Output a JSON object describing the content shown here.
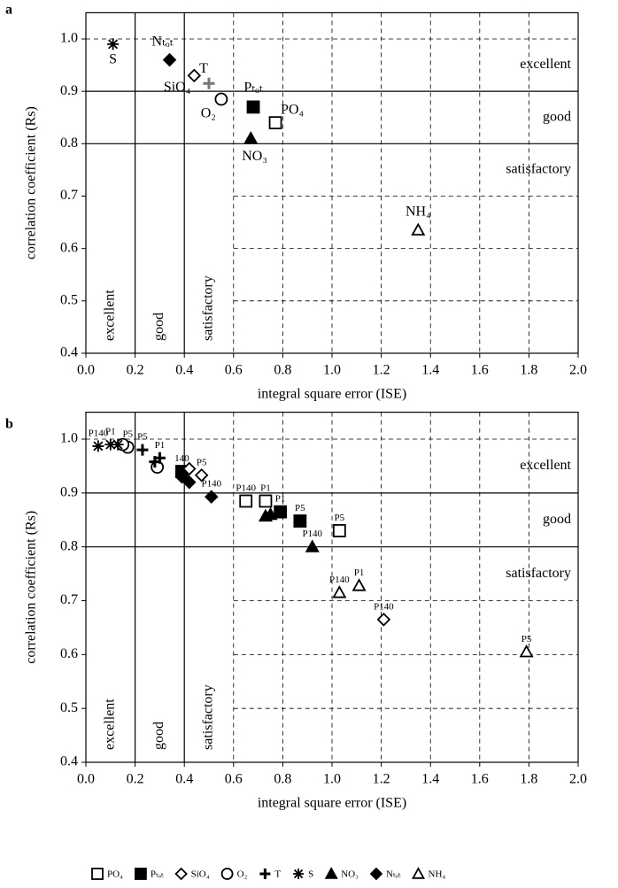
{
  "chart_data": [
    {
      "type": "scatter",
      "title": "a",
      "xlabel": "integral square error (ISE)",
      "ylabel": "correlation coefficient (Rs)",
      "xlim": [
        0,
        2
      ],
      "ylim": [
        0.4,
        1.05
      ],
      "xticks": [
        {
          "value": 0,
          "label": "0.0"
        },
        0.2,
        0.4,
        0.6,
        0.8,
        {
          "value": 1,
          "label": "1.0"
        },
        1.2,
        1.4,
        1.6,
        1.8,
        {
          "value": 2,
          "label": "2.0"
        }
      ],
      "yticks": [
        0.4,
        0.5,
        0.6,
        0.7,
        0.8,
        0.9,
        {
          "value": 1,
          "label": "1.0"
        }
      ],
      "grid": {
        "solid_x": [
          0.2,
          0.4
        ],
        "solid_y": [
          0.8,
          0.9
        ]
      },
      "zone_labels": [
        "excellent",
        "good",
        "satisfactory"
      ],
      "series": [
        {
          "name": "PO₄",
          "shape": "square",
          "filled": false,
          "color": "#000000",
          "x": [
            0.77
          ],
          "values": [
            0.84
          ]
        },
        {
          "name": "Pₜₒₜ",
          "shape": "square",
          "filled": true,
          "color": "#000000",
          "x": [
            0.68
          ],
          "values": [
            0.87
          ]
        },
        {
          "name": "SiO₄",
          "shape": "diamond",
          "filled": false,
          "color": "#000000",
          "x": [
            0.44
          ],
          "values": [
            0.93
          ]
        },
        {
          "name": "O₂",
          "shape": "circle",
          "filled": false,
          "color": "#000000",
          "x": [
            0.55
          ],
          "values": [
            0.885
          ]
        },
        {
          "name": "T",
          "shape": "plus",
          "filled": true,
          "color": "#777777",
          "x": [
            0.5
          ],
          "values": [
            0.915
          ]
        },
        {
          "name": "S",
          "shape": "asterisk",
          "filled": true,
          "color": "#000000",
          "x": [
            0.11
          ],
          "values": [
            0.99
          ]
        },
        {
          "name": "NO₃",
          "shape": "triangle",
          "filled": true,
          "color": "#000000",
          "x": [
            0.67
          ],
          "values": [
            0.81
          ]
        },
        {
          "name": "Nₜₒₜ",
          "shape": "diamond",
          "filled": true,
          "color": "#000000",
          "x": [
            0.34
          ],
          "values": [
            0.96
          ]
        },
        {
          "name": "NH₄",
          "shape": "triangle",
          "filled": false,
          "color": "#000000",
          "x": [
            1.35
          ],
          "values": [
            0.635
          ]
        }
      ]
    },
    {
      "type": "scatter",
      "title": "b",
      "xlabel": "integral square error (ISE)",
      "ylabel": "correlation coefficient (Rs)",
      "xlim": [
        0,
        2
      ],
      "ylim": [
        0.4,
        1.05
      ],
      "xticks": [
        {
          "value": 0,
          "label": "0.0"
        },
        0.2,
        0.4,
        0.6,
        0.8,
        {
          "value": 1,
          "label": "1.0"
        },
        1.2,
        1.4,
        1.6,
        1.8,
        {
          "value": 2,
          "label": "2.0"
        }
      ],
      "yticks": [
        0.4,
        0.5,
        0.6,
        0.7,
        0.8,
        0.9,
        {
          "value": 1,
          "label": "1.0"
        }
      ],
      "grid": {
        "solid_x": [
          0.2,
          0.4
        ],
        "solid_y": [
          0.8,
          0.9
        ]
      },
      "zone_labels": [
        "excellent",
        "good",
        "satisfactory"
      ],
      "legend": "bottom",
      "series": [
        {
          "name": "PO₄",
          "shape": "square",
          "filled": false,
          "color": "#000000",
          "x": [
            0.65,
            0.73,
            1.03
          ],
          "values": [
            0.885,
            0.885,
            0.83
          ],
          "point_labels": [
            "P140",
            "P1",
            "P5"
          ]
        },
        {
          "name": "Pₜₒₜ",
          "shape": "square",
          "filled": true,
          "color": "#000000",
          "x": [
            0.39,
            0.79,
            0.87
          ],
          "values": [
            0.94,
            0.865,
            0.848
          ],
          "point_labels": [
            "140",
            "P1",
            "P5"
          ]
        },
        {
          "name": "SiO₄",
          "shape": "diamond",
          "filled": false,
          "color": "#000000",
          "x": [
            0.42,
            0.47,
            1.21
          ],
          "values": [
            0.945,
            0.933,
            0.665
          ],
          "point_labels": [
            null,
            "P5",
            "P140"
          ]
        },
        {
          "name": "O₂",
          "shape": "circle",
          "filled": false,
          "color": "#000000",
          "x": [
            0.17,
            0.29,
            0.15
          ],
          "values": [
            0.985,
            0.948,
            0.99
          ],
          "point_labels": [
            "P5",
            null,
            null
          ]
        },
        {
          "name": "T",
          "shape": "plus",
          "filled": true,
          "color": "#000000",
          "x": [
            0.23,
            0.3,
            0.28
          ],
          "values": [
            0.98,
            0.965,
            0.958
          ],
          "point_labels": [
            "P5",
            "P1",
            null
          ]
        },
        {
          "name": "S",
          "shape": "asterisk",
          "filled": true,
          "color": "#000000",
          "x": [
            0.05,
            0.1,
            0.13
          ],
          "values": [
            0.987,
            0.99,
            0.99
          ],
          "point_labels": [
            "P140",
            "P1",
            null
          ]
        },
        {
          "name": "NO₃",
          "shape": "triangle",
          "filled": true,
          "color": "#000000",
          "x": [
            0.73,
            0.92,
            0.75
          ],
          "values": [
            0.857,
            0.8,
            0.86
          ],
          "point_labels": [
            null,
            "P140",
            null
          ]
        },
        {
          "name": "Nₜₒₜ",
          "shape": "diamond",
          "filled": true,
          "color": "#000000",
          "x": [
            0.39,
            0.42,
            0.51
          ],
          "values": [
            0.93,
            0.92,
            0.893
          ],
          "point_labels": [
            null,
            null,
            "P140"
          ]
        },
        {
          "name": "NH₄",
          "shape": "triangle",
          "filled": false,
          "color": "#000000",
          "x": [
            1.03,
            1.11,
            1.79
          ],
          "values": [
            0.715,
            0.728,
            0.605
          ],
          "point_labels": [
            "P140",
            "P1",
            "P5"
          ]
        }
      ]
    }
  ]
}
